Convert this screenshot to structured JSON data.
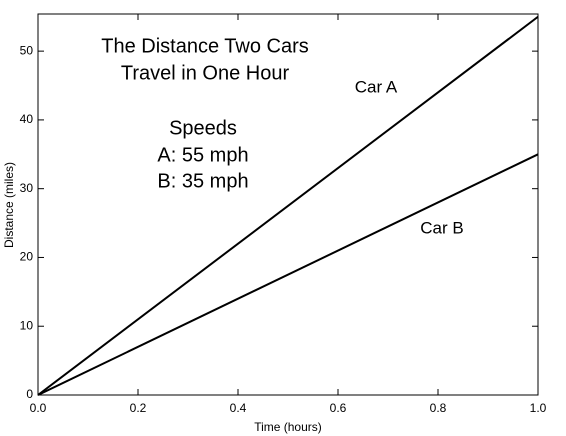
{
  "chart_data": {
    "type": "line",
    "title": [
      "The Distance Two Cars",
      "Travel in One Hour"
    ],
    "annotations": [
      "Speeds",
      "A: 55 mph",
      "B: 35 mph"
    ],
    "x_label": "Time (hours)",
    "y_label": "Distance (miles)",
    "x": [
      0,
      1
    ],
    "series": [
      {
        "name": "Car A",
        "color": "#000000",
        "values": [
          0,
          55
        ]
      },
      {
        "name": "Car B",
        "color": "#000000",
        "values": [
          0,
          35
        ]
      }
    ],
    "xlim": [
      0,
      1
    ],
    "xticks": [
      {
        "value": 0,
        "label": "0.0"
      },
      0.2,
      0.4,
      0.6,
      0.8,
      {
        "value": 1,
        "label": "1.0"
      }
    ],
    "ylim": [
      0,
      55.4
    ],
    "yticks": [
      0,
      10,
      20,
      30,
      40,
      50
    ],
    "grid": false
  }
}
